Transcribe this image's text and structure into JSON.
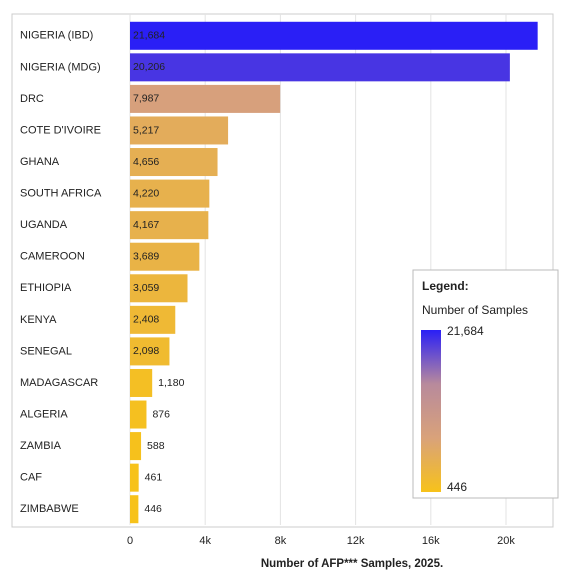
{
  "chart_data": {
    "type": "bar",
    "orientation": "horizontal",
    "categories": [
      "NIGERIA (IBD)",
      "NIGERIA (MDG)",
      "DRC",
      "COTE D'IVOIRE",
      "GHANA",
      "SOUTH AFRICA",
      "UGANDA",
      "CAMEROON",
      "ETHIOPIA",
      "KENYA",
      "SENEGAL",
      "MADAGASCAR",
      "ALGERIA",
      "ZAMBIA",
      "CAF",
      "ZIMBABWE"
    ],
    "values": [
      21684,
      20206,
      7987,
      5217,
      4656,
      4220,
      4167,
      3689,
      3059,
      2408,
      2098,
      1180,
      876,
      588,
      461,
      446
    ],
    "value_labels": [
      "21,684",
      "20,206",
      "7,987",
      "5,217",
      "4,656",
      "4,220",
      "4,167",
      "3,689",
      "3,059",
      "2,408",
      "2,098",
      "1,180",
      "876",
      "588",
      "461",
      "446"
    ],
    "xlabel": "Number of AFP*** Samples, 2025.",
    "xlim": [
      0,
      22500
    ],
    "xticks": [
      0,
      {
        "value": 4000,
        "label": "4k"
      },
      {
        "value": 8000,
        "label": "8k"
      },
      {
        "value": 12000,
        "label": "12k"
      },
      {
        "value": 16000,
        "label": "16k"
      },
      {
        "value": 20000,
        "label": "20k"
      }
    ],
    "grid": true,
    "color_scale": [
      "#f7c21a",
      "#d9a27a",
      "#b88a9c",
      "#2a1ff6"
    ],
    "legend": {
      "title": "Legend:",
      "subtitle": "Number of Samples",
      "max": {
        "value": 21684,
        "label": "21,684"
      },
      "min": 446,
      "position": "lower right"
    }
  }
}
